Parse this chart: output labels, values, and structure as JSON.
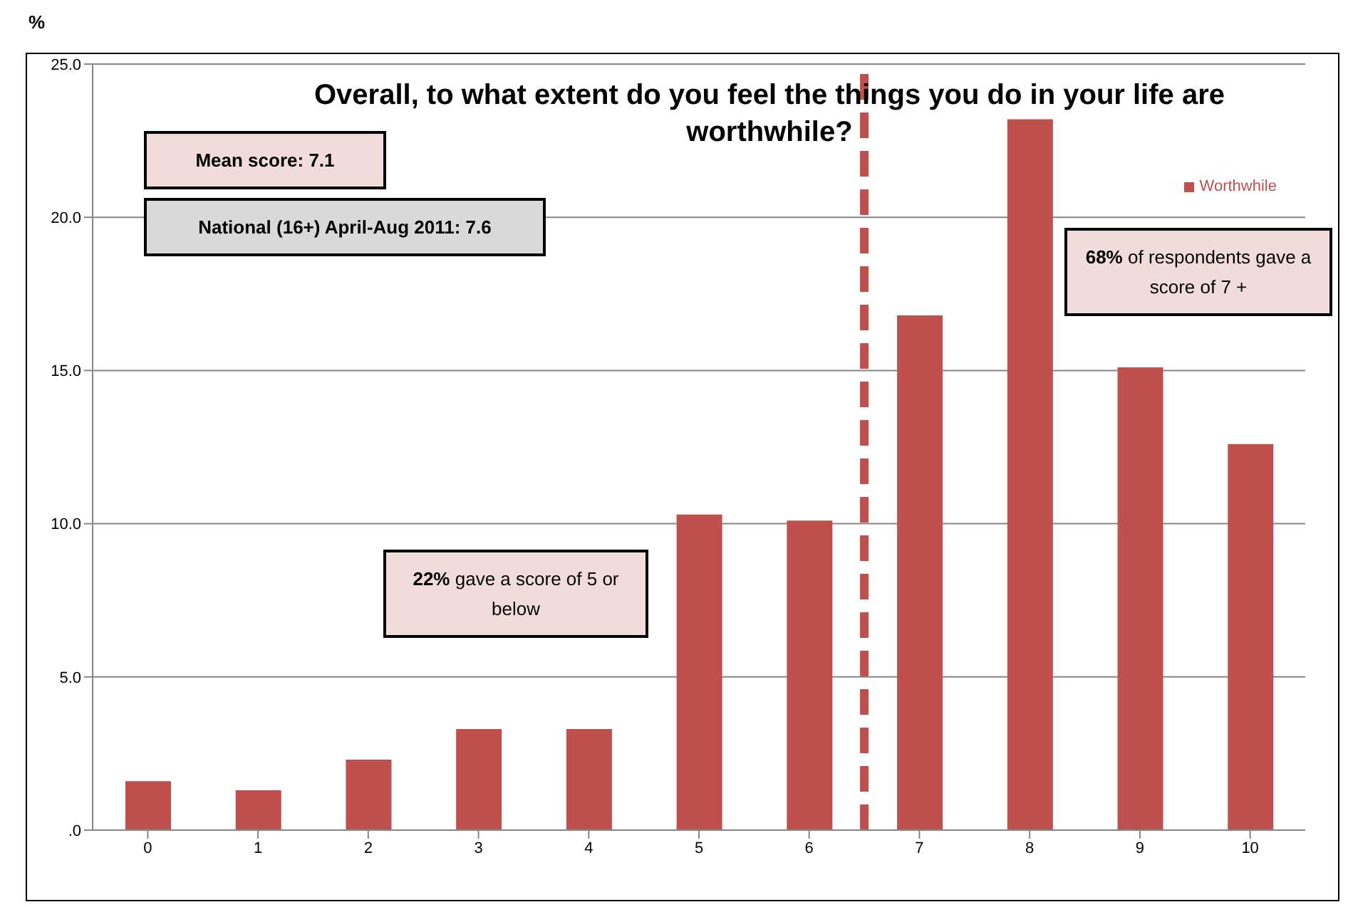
{
  "chart_data": {
    "type": "bar",
    "title": "Overall, to what extent do you feel the things you do in your life are worthwhile?",
    "ylabel": "%",
    "x": [
      0,
      1,
      2,
      3,
      4,
      5,
      6,
      7,
      8,
      9,
      10
    ],
    "xlim": [
      -0.5,
      10.5
    ],
    "xticks": [
      0,
      1,
      2,
      3,
      4,
      5,
      6,
      7,
      8,
      9,
      10
    ],
    "series": [
      {
        "name": "Worthwhile",
        "color": "#c0504d",
        "values": [
          1.6,
          1.3,
          2.3,
          3.3,
          3.3,
          10.3,
          10.1,
          16.8,
          23.2,
          15.1,
          12.6
        ]
      }
    ],
    "ylim": [
      0,
      25
    ],
    "yticks": [
      {
        "value": 0,
        "label": ".0"
      },
      {
        "value": 5,
        "label": "5.0"
      },
      {
        "value": 10,
        "label": "10.0"
      },
      {
        "value": 15,
        "label": "15.0"
      },
      {
        "value": 20,
        "label": "20.0"
      },
      {
        "value": 25,
        "label": "25.0"
      }
    ],
    "grid": "y",
    "legend": "top right",
    "ref_lines": [
      {
        "axis": "x",
        "value": 6.5,
        "color": "#c0504d",
        "line_style": "dashed"
      }
    ],
    "annotations": [
      "Mean score: 7.1",
      "National (16+) April-Aug 2011: 7.6",
      "68% of respondents gave a score of 7 +",
      "22% gave a score of 5 or below"
    ]
  }
}
